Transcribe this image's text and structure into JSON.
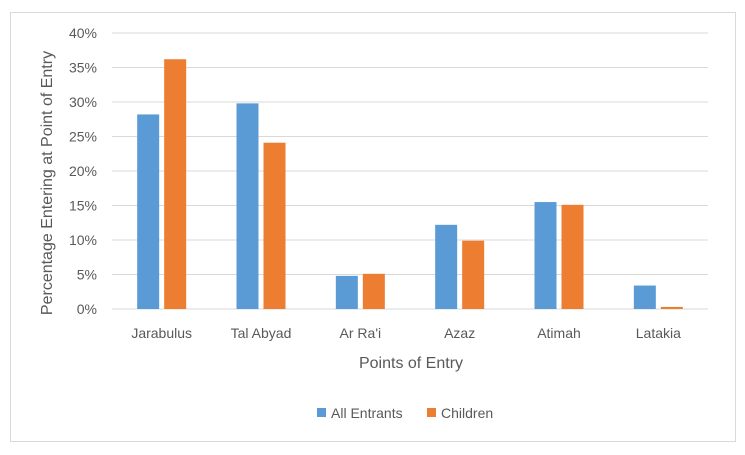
{
  "chart_data": {
    "type": "bar",
    "title": "",
    "xlabel": "Points of Entry",
    "ylabel": "Percentage Entering at Point of Entry",
    "categories": [
      "Jarabulus",
      "Tal Abyad",
      "Ar Ra'i",
      "Azaz",
      "Atimah",
      "Latakia"
    ],
    "series": [
      {
        "name": "All Entrants",
        "color": "#5b9bd5",
        "values": [
          28.2,
          29.8,
          4.8,
          12.2,
          15.5,
          3.4
        ]
      },
      {
        "name": "Children",
        "color": "#ed7d31",
        "values": [
          36.2,
          24.1,
          5.1,
          9.9,
          15.1,
          0.3
        ]
      }
    ],
    "ylim": [
      0,
      40
    ],
    "yticks": [
      0,
      5,
      10,
      15,
      20,
      25,
      30,
      35,
      40
    ],
    "ytick_labels": [
      "0%",
      "5%",
      "10%",
      "15%",
      "20%",
      "25%",
      "30%",
      "35%",
      "40%"
    ],
    "grid": true,
    "legend_position": "bottom"
  }
}
